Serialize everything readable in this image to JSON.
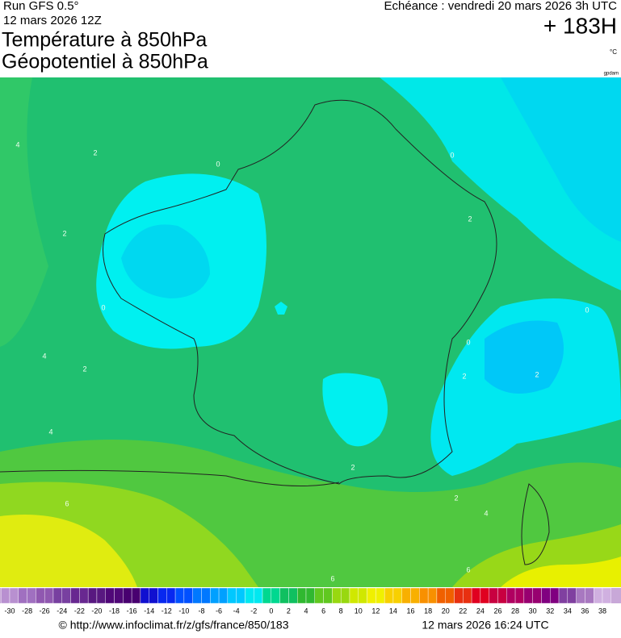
{
  "header": {
    "run": "Run GFS 0.5°",
    "run_date": "12 mars 2026 12Z",
    "title_1": "Température à 850hPa",
    "title_2": "Géopotentiel à 850hPa",
    "valid": "Echéance : vendredi 20 mars 2026 3h UTC",
    "lead": "+ 183H",
    "unit": "°C",
    "credit": "gpdam"
  },
  "colorbar": {
    "labels": [
      -30,
      -28,
      -26,
      -24,
      -22,
      -20,
      -18,
      -16,
      -14,
      -12,
      -10,
      -8,
      -6,
      -4,
      -2,
      0,
      2,
      4,
      6,
      8,
      10,
      12,
      14,
      16,
      18,
      20,
      22,
      24,
      26,
      28,
      30,
      32,
      34,
      36,
      38
    ],
    "colors": [
      "#b890d0",
      "#a070c0",
      "#9058b0",
      "#7840a0",
      "#682890",
      "#581880",
      "#500878",
      "#480070",
      "#1010d0",
      "#0828f0",
      "#0050ff",
      "#0078ff",
      "#00a0ff",
      "#00c8ff",
      "#00e8f0",
      "#00d890",
      "#10c060",
      "#30b830",
      "#60c820",
      "#98d810",
      "#d0e800",
      "#f0f000",
      "#f8d000",
      "#f8b000",
      "#f89000",
      "#f06000",
      "#e83010",
      "#e00020",
      "#c80040",
      "#b00060",
      "#980070",
      "#800080",
      "#8040a0",
      "#a878c0",
      "#d0b0e0"
    ]
  },
  "map": {
    "contour_labels": [
      4,
      2,
      0,
      2,
      0,
      2,
      0,
      2,
      0,
      2,
      0,
      2,
      4,
      2,
      4,
      6,
      6,
      2,
      4,
      6
    ]
  },
  "footer": {
    "url": "© http://www.infoclimat.fr/z/gfs/france/850/183",
    "created": "12 mars 2026 16:24 UTC"
  }
}
